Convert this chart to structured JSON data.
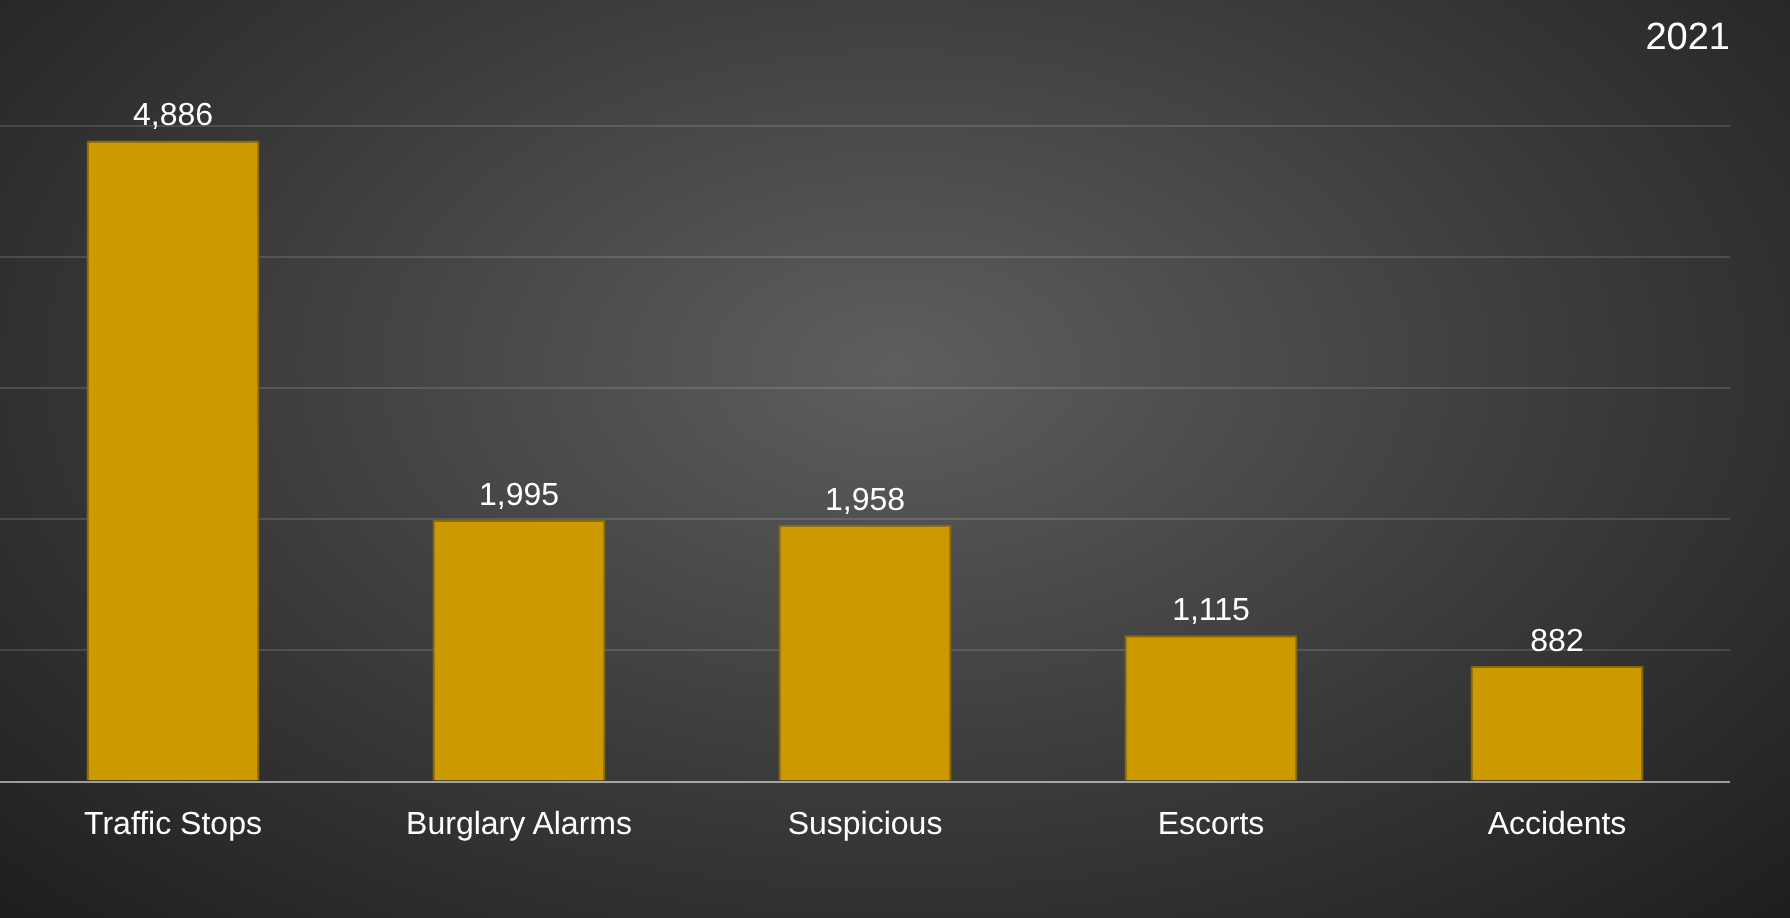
{
  "chart_data": {
    "type": "bar",
    "title": "2021",
    "categories": [
      "Traffic Stops",
      "Burglary Alarms",
      "Suspicious",
      "Escorts",
      "Accidents"
    ],
    "values": [
      4886,
      1995,
      1958,
      1115,
      882
    ],
    "color": "#cc9900",
    "ylim": [
      0,
      5000
    ],
    "yticks": [
      {
        "value": 0,
        "label": null
      },
      {
        "value": 1000,
        "label": null
      },
      {
        "value": 2000,
        "label": null
      },
      {
        "value": 3000,
        "label": null
      },
      {
        "value": 4000,
        "label": null
      },
      {
        "value": 5000,
        "label": null
      }
    ],
    "value_labels": [
      "4,886",
      "1,995",
      "1,958",
      "1,115",
      "882"
    ],
    "grid": "y",
    "tick_labels": "x",
    "legend": false
  }
}
